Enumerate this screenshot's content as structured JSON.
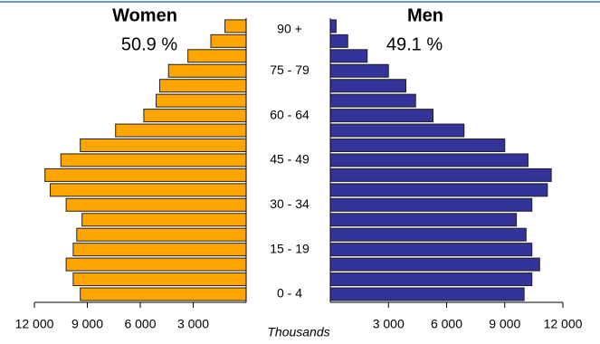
{
  "chart_data": {
    "type": "pyramid",
    "categories": [
      "0 - 4",
      null,
      null,
      "15 - 19",
      null,
      null,
      "30 - 34",
      null,
      null,
      "45 - 49",
      null,
      null,
      "60 - 64",
      null,
      null,
      "75 - 79",
      null,
      null,
      "90 +"
    ],
    "series": [
      {
        "name": "Women",
        "share": "50.9 %",
        "color": "#ffa500",
        "side": "left",
        "values": [
          9400,
          9800,
          10200,
          9800,
          9600,
          9300,
          10200,
          11100,
          11400,
          10500,
          9400,
          7400,
          5800,
          5100,
          4900,
          4400,
          3300,
          2000,
          1200
        ]
      },
      {
        "name": "Men",
        "share": "49.1 %",
        "color": "#333399",
        "side": "right",
        "values": [
          10000,
          10400,
          10800,
          10400,
          10100,
          9600,
          10400,
          11200,
          11400,
          10200,
          9000,
          6900,
          5300,
          4400,
          3900,
          3000,
          1900,
          900,
          300
        ]
      }
    ],
    "xlim": [
      0,
      12000
    ],
    "xticks": [
      {
        "value": 3000,
        "label": "3 000"
      },
      {
        "value": 6000,
        "label": "6 000"
      },
      {
        "value": 9000,
        "label": "9 000"
      },
      {
        "value": 12000,
        "label": "12 000"
      }
    ],
    "xlabel": "Thousands"
  }
}
